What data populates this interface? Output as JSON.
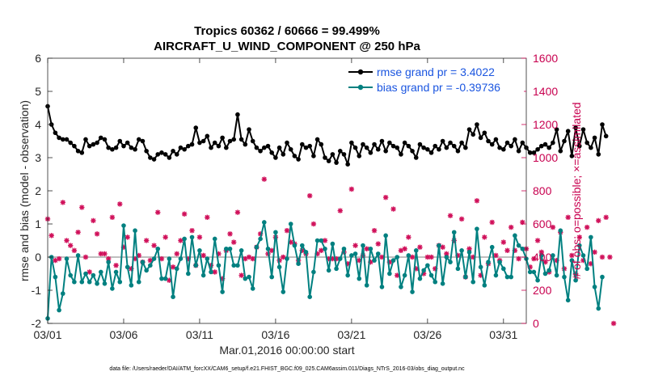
{
  "chart_data": {
    "type": "line",
    "title_line1": "Tropics 60362 / 60666 = 99.499%",
    "title_line2": "AIRCRAFT_U_WIND_COMPONENT @ 250 hPa",
    "ylabel": "rmse and bias (model - observation)",
    "ylabel_right": "# of obs: o=possible; ×=assimilated",
    "xlabel": "Mar.01,2016 00:00:00 start",
    "footer": "data file: /Users/raeder/DAI/ATM_forcXX/CAM6_setup/f.e21.FHIST_BGC.f09_025.CAM6assim.011/Diags_NTrS_2016-03/obs_diag_output.nc",
    "xlim": [
      0,
      31.5
    ],
    "ylim": [
      -2,
      6
    ],
    "ylim_right": [
      0,
      1600
    ],
    "x_ticks": [
      0,
      5,
      10,
      15,
      20,
      25,
      30
    ],
    "x_tick_labels": [
      "03/01",
      "03/06",
      "03/11",
      "03/16",
      "03/21",
      "03/26",
      "03/31"
    ],
    "y_ticks": [
      -2,
      -1,
      0,
      1,
      2,
      3,
      4,
      5,
      6
    ],
    "y_tick_labels": [
      "-2",
      "-1",
      "0",
      "1",
      "2",
      "3",
      "4",
      "5",
      "6"
    ],
    "y_right_ticks": [
      0,
      200,
      400,
      600,
      800,
      1000,
      1200,
      1400,
      1600
    ],
    "y_right_tick_labels": [
      "0",
      "200",
      "400",
      "600",
      "800",
      "1000",
      "1200",
      "1400",
      "1600"
    ],
    "zero_line": 0,
    "time_step_days": 0.25,
    "series": [
      {
        "name": "rmse grand pr = 3.4022",
        "color": "#000000",
        "marker": "filled-circle",
        "values": [
          4.55,
          4.0,
          3.75,
          3.6,
          3.55,
          3.55,
          3.45,
          3.35,
          3.2,
          3.15,
          3.55,
          3.35,
          3.4,
          3.45,
          3.6,
          3.55,
          3.3,
          3.25,
          3.3,
          3.5,
          3.35,
          3.45,
          3.3,
          3.25,
          3.55,
          3.5,
          3.2,
          3.0,
          2.95,
          3.1,
          3.15,
          3.1,
          3.0,
          3.2,
          3.1,
          3.3,
          3.25,
          3.35,
          3.4,
          3.9,
          3.45,
          3.5,
          3.65,
          3.3,
          3.45,
          3.35,
          3.6,
          3.3,
          3.5,
          3.55,
          4.3,
          3.55,
          3.4,
          3.85,
          3.5,
          3.3,
          3.2,
          3.3,
          3.35,
          3.15,
          3.0,
          3.3,
          3.1,
          3.45,
          3.25,
          3.05,
          2.95,
          3.4,
          3.3,
          3.35,
          3.05,
          3.55,
          3.4,
          3.0,
          2.9,
          3.1,
          2.85,
          3.2,
          3.1,
          2.8,
          3.45,
          3.3,
          3.05,
          3.4,
          3.3,
          3.15,
          3.4,
          3.25,
          3.5,
          3.2,
          3.45,
          3.35,
          3.3,
          3.1,
          3.45,
          3.35,
          3.2,
          3.0,
          3.4,
          3.3,
          3.25,
          3.15,
          3.35,
          3.25,
          3.5,
          3.3,
          3.45,
          3.35,
          3.2,
          3.45,
          3.3,
          3.85,
          3.7,
          4.0,
          3.6,
          3.75,
          3.5,
          3.4,
          3.55,
          3.3,
          3.25,
          3.45,
          3.35,
          3.55,
          3.2,
          3.45,
          3.3,
          3.15,
          3.15,
          3.25,
          3.35,
          3.4,
          3.3,
          3.45,
          3.85,
          3.2,
          3.5,
          3.8,
          3.05,
          3.9,
          3.35,
          3.85,
          3.45,
          3.3,
          3.6,
          3.1,
          4.0,
          3.65
        ]
      },
      {
        "name": "bias grand pr = -0.39736",
        "color": "#008080",
        "marker": "filled-circle",
        "values": [
          -1.85,
          0.0,
          -0.6,
          -1.6,
          -1.1,
          -0.05,
          -0.55,
          -0.75,
          0.05,
          -0.75,
          -0.5,
          -0.75,
          -0.55,
          -0.8,
          -0.45,
          -0.8,
          -0.15,
          -0.95,
          -0.45,
          -0.75,
          0.95,
          -0.3,
          -0.85,
          0.8,
          -0.75,
          -0.15,
          -0.4,
          -0.25,
          -0.05,
          0.25,
          -0.65,
          -0.65,
          -0.05,
          -1.2,
          -0.35,
          -0.05,
          0.55,
          -0.5,
          0.6,
          -0.25,
          0.2,
          -0.55,
          -0.05,
          -0.45,
          0.55,
          -0.25,
          -1.05,
          0.25,
          0.25,
          -0.25,
          -0.25,
          0.2,
          -0.65,
          -0.6,
          -0.95,
          0.3,
          0.55,
          1.05,
          0.25,
          -0.6,
          0.75,
          -0.3,
          -1.05,
          -0.05,
          1.0,
          0.35,
          -0.2,
          0.35,
          0.15,
          -1.2,
          -0.45,
          0.5,
          0.5,
          0.25,
          -0.4,
          0.4,
          -0.35,
          -0.05,
          0.25,
          -0.55,
          0.05,
          0.1,
          -0.65,
          0.35,
          -0.85,
          0.25,
          -0.1,
          0.1,
          -0.9,
          0.65,
          -0.5,
          -0.1,
          0.0,
          -0.9,
          -0.55,
          0.05,
          -1.05,
          0.2,
          -0.65,
          -0.4,
          -0.25,
          -0.55,
          -0.75,
          0.35,
          -0.8,
          0.0,
          -0.15,
          0.75,
          -0.35,
          0.2,
          -0.6,
          0.15,
          -0.75,
          0.85,
          -0.3,
          -0.85,
          -0.15,
          0.3,
          -0.55,
          -0.15,
          -0.35,
          -0.6,
          -0.6,
          0.65,
          0.35,
          0.25,
          -0.05,
          -0.45,
          -0.45,
          -0.7,
          0.05,
          -0.5,
          -0.4,
          0.05,
          -0.55,
          0.8,
          -0.6,
          -1.3,
          -0.1,
          -0.7,
          0.35,
          0.05,
          -0.35,
          0.6,
          -0.9,
          -1.55,
          -0.6
        ]
      }
    ],
    "assimilated_counts": [
      630,
      530,
      380,
      390,
      730,
      500,
      470,
      440,
      550,
      700,
      400,
      310,
      620,
      540,
      420,
      420,
      390,
      640,
      350,
      720,
      460,
      520,
      330,
      390,
      410,
      370,
      500,
      380,
      470,
      670,
      390,
      520,
      260,
      340,
      420,
      500,
      660,
      390,
      560,
      350,
      520,
      410,
      640,
      350,
      310,
      420,
      270,
      440,
      540,
      490,
      670,
      290,
      390,
      400,
      390,
      460,
      540,
      870,
      420,
      440,
      520,
      380,
      400,
      560,
      490,
      480,
      380,
      440,
      420,
      770,
      600,
      420,
      440,
      500,
      390,
      390,
      390,
      680,
      430,
      360,
      810,
      470,
      380,
      410,
      450,
      370,
      560,
      480,
      400,
      760,
      370,
      690,
      290,
      440,
      450,
      520,
      400,
      330,
      460,
      300,
      400,
      400,
      330,
      470,
      460,
      420,
      650,
      500,
      410,
      630,
      280,
      450,
      400,
      740,
      290,
      520,
      360,
      610,
      410,
      380,
      490,
      440,
      580,
      440,
      390,
      610,
      450,
      340,
      390,
      500,
      430,
      370,
      310,
      580,
      380,
      550,
      330,
      640,
      410,
      300,
      520,
      380,
      580,
      360,
      430,
      620,
      400,
      640,
      400,
      0
    ]
  }
}
